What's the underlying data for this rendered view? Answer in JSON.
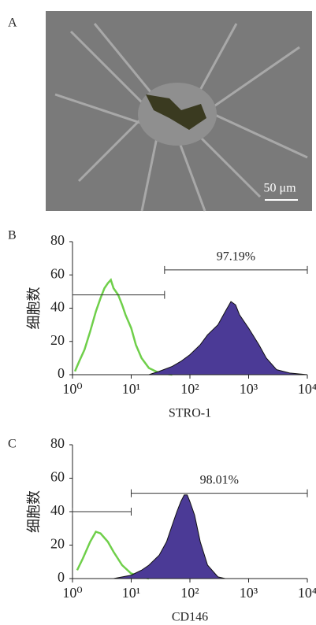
{
  "panel_a": {
    "label": "A",
    "scale_bar": "50 μm"
  },
  "chart_data": [
    {
      "type": "area",
      "panel_label": "B",
      "xlabel": "STRO-1",
      "ylabel": "细胞数",
      "log_x": true,
      "xlim": [
        1,
        10000
      ],
      "ylim": [
        0,
        80
      ],
      "xticks": [
        {
          "value": 1,
          "label": "10⁰"
        },
        {
          "value": 10,
          "label": "10¹"
        },
        {
          "value": 100,
          "label": "10²"
        },
        {
          "value": 1000,
          "label": "10³"
        },
        {
          "value": 10000,
          "label": "10⁴"
        }
      ],
      "yticks": [
        0,
        20,
        40,
        60,
        80
      ],
      "series": [
        {
          "color": "#6fcf4a",
          "fill": false,
          "x": [
            1.1,
            1.3,
            1.6,
            2,
            2.5,
            3,
            3.5,
            4,
            4.5,
            5,
            6,
            7,
            8,
            10,
            12,
            15,
            20,
            30,
            50
          ],
          "values": [
            2,
            8,
            15,
            26,
            38,
            46,
            52,
            55,
            57,
            52,
            48,
            42,
            36,
            28,
            18,
            10,
            4,
            1,
            0
          ]
        },
        {
          "color": "#4b3a96",
          "fill": true,
          "x": [
            20,
            30,
            50,
            70,
            100,
            150,
            200,
            300,
            400,
            500,
            600,
            700,
            1000,
            1500,
            2000,
            3000,
            5000,
            10000
          ],
          "values": [
            0,
            2,
            5,
            8,
            12,
            18,
            24,
            30,
            38,
            44,
            42,
            36,
            28,
            18,
            10,
            3,
            1,
            0
          ]
        }
      ],
      "gates": [
        {
          "range": [
            37,
            10000
          ],
          "y": 63,
          "label": "97.19%"
        },
        {
          "range": [
            1,
            37
          ],
          "y": 48
        }
      ]
    },
    {
      "type": "area",
      "panel_label": "C",
      "xlabel": "CD146",
      "ylabel": "细胞数",
      "log_x": true,
      "xlim": [
        1,
        10000
      ],
      "ylim": [
        0,
        80
      ],
      "xticks": [
        {
          "value": 1,
          "label": "10⁰"
        },
        {
          "value": 10,
          "label": "10¹"
        },
        {
          "value": 100,
          "label": "10²"
        },
        {
          "value": 1000,
          "label": "10³"
        },
        {
          "value": 10000,
          "label": "10⁴"
        }
      ],
      "yticks": [
        0,
        20,
        40,
        60,
        80
      ],
      "series": [
        {
          "color": "#6fcf4a",
          "fill": false,
          "x": [
            1.2,
            1.5,
            2,
            2.5,
            3,
            4,
            5,
            7,
            10,
            15,
            20
          ],
          "values": [
            5,
            12,
            22,
            28,
            27,
            22,
            16,
            8,
            3,
            1,
            0
          ]
        },
        {
          "color": "#4b3a96",
          "fill": true,
          "x": [
            5,
            10,
            15,
            20,
            30,
            40,
            50,
            60,
            70,
            80,
            90,
            100,
            120,
            150,
            200,
            300,
            400
          ],
          "values": [
            0,
            2,
            5,
            8,
            14,
            22,
            32,
            40,
            46,
            50,
            50,
            46,
            38,
            22,
            8,
            1,
            0
          ]
        }
      ],
      "gates": [
        {
          "range": [
            10,
            10000
          ],
          "y": 51,
          "label": "98.01%"
        },
        {
          "range": [
            1,
            10
          ],
          "y": 40
        }
      ]
    }
  ]
}
